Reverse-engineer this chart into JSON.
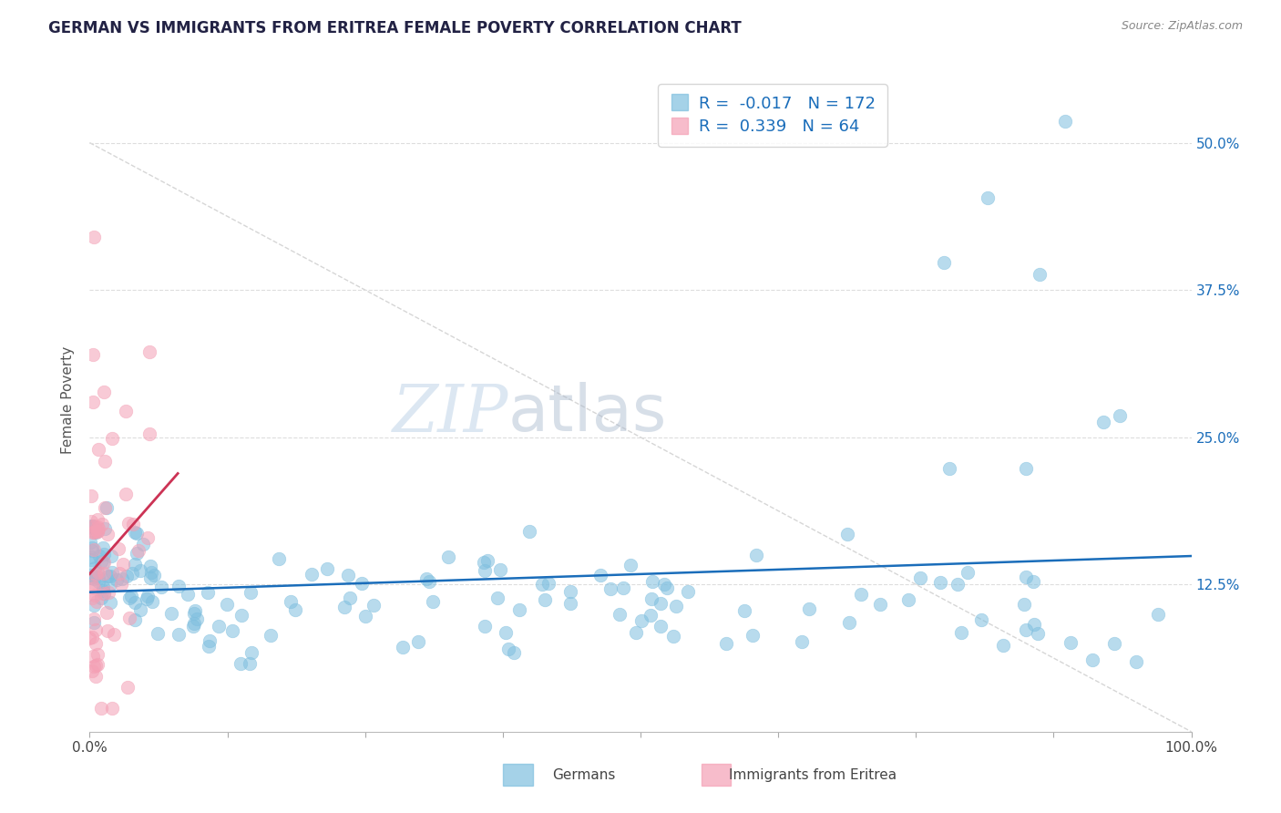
{
  "title": "GERMAN VS IMMIGRANTS FROM ERITREA FEMALE POVERTY CORRELATION CHART",
  "source": "Source: ZipAtlas.com",
  "ylabel": "Female Poverty",
  "legend_label_1": "Germans",
  "legend_label_2": "Immigrants from Eritrea",
  "R1": -0.017,
  "N1": 172,
  "R2": 0.339,
  "N2": 64,
  "color_blue": "#7fbfdf",
  "color_pink": "#f4a0b5",
  "color_blue_line": "#1a6dba",
  "color_pink_line": "#cc3355",
  "color_blue_text": "#1a6dba",
  "color_legend_text": "#333333",
  "xmin": 0.0,
  "xmax": 1.0,
  "ymin": 0.0,
  "ymax": 0.5625,
  "ytick_vals": [
    0.0,
    0.125,
    0.25,
    0.375,
    0.5
  ],
  "ytick_labels_right": [
    "",
    "12.5%",
    "25.0%",
    "37.5%",
    "50.0%"
  ],
  "xtick_vals": [
    0.0,
    0.125,
    0.25,
    0.375,
    0.5,
    0.625,
    0.75,
    0.875,
    1.0
  ],
  "xtick_labels": [
    "0.0%",
    "",
    "",
    "",
    "",
    "",
    "",
    "",
    "100.0%"
  ],
  "watermark_zip": "ZIP",
  "watermark_atlas": "atlas",
  "background_color": "#ffffff",
  "grid_color": "#dddddd",
  "ref_line_color": "#cccccc"
}
